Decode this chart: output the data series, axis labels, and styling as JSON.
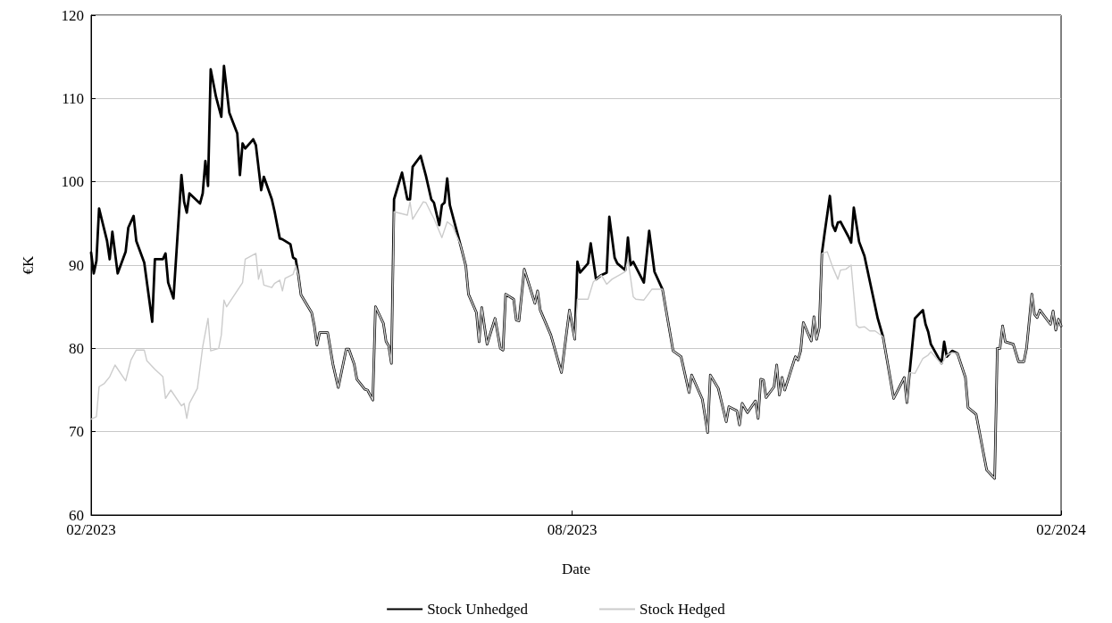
{
  "chart_data": {
    "type": "line",
    "xlabel": "Date",
    "ylabel": "€K",
    "xlim": [
      "2023-02-01",
      "2024-02-01"
    ],
    "xticks": [
      {
        "value": "2023-02-01",
        "label": "02/2023"
      },
      {
        "value": "2023-08-01",
        "label": "08/2023"
      },
      {
        "value": "2024-02-01",
        "label": "02/2024"
      }
    ],
    "ylim": [
      60,
      120
    ],
    "yticks": [
      60,
      70,
      80,
      90,
      100,
      110,
      120
    ],
    "grid": "y",
    "legend": "bottom",
    "marker": "none",
    "line_style": "solid",
    "series": [
      {
        "name": "Stock Unhedged",
        "color": "#000000",
        "x": [
          "2023-02-01",
          "2023-02-02",
          "2023-02-03",
          "2023-02-04",
          "2023-02-07",
          "2023-02-08",
          "2023-02-09",
          "2023-02-11",
          "2023-02-14",
          "2023-02-15",
          "2023-02-17",
          "2023-02-18",
          "2023-02-21",
          "2023-02-24",
          "2023-02-25",
          "2023-02-28",
          "2023-03-01",
          "2023-03-02",
          "2023-03-04",
          "2023-03-07",
          "2023-03-08",
          "2023-03-09",
          "2023-03-10",
          "2023-03-14",
          "2023-03-15",
          "2023-03-16",
          "2023-03-17",
          "2023-03-18",
          "2023-03-20",
          "2023-03-22",
          "2023-03-23",
          "2023-03-25",
          "2023-03-28",
          "2023-03-29",
          "2023-03-30",
          "2023-03-31",
          "2023-04-03",
          "2023-04-04",
          "2023-04-06",
          "2023-04-07",
          "2023-04-10",
          "2023-04-11",
          "2023-04-13",
          "2023-04-14",
          "2023-04-17",
          "2023-04-18",
          "2023-04-19",
          "2023-04-20",
          "2023-04-21",
          "2023-04-25",
          "2023-04-26",
          "2023-04-27",
          "2023-04-28",
          "2023-05-01",
          "2023-05-03",
          "2023-05-05",
          "2023-05-08",
          "2023-05-09",
          "2023-05-11",
          "2023-05-12",
          "2023-05-15",
          "2023-05-16",
          "2023-05-18",
          "2023-05-19",
          "2023-05-22",
          "2023-05-23",
          "2023-05-24",
          "2023-05-25",
          "2023-05-26",
          "2023-05-29",
          "2023-05-31",
          "2023-06-01",
          "2023-06-02",
          "2023-06-05",
          "2023-06-07",
          "2023-06-09",
          "2023-06-10",
          "2023-06-12",
          "2023-06-13",
          "2023-06-14",
          "2023-06-15",
          "2023-06-16",
          "2023-06-20",
          "2023-06-22",
          "2023-06-23",
          "2023-06-26",
          "2023-06-27",
          "2023-06-28",
          "2023-06-30",
          "2023-07-03",
          "2023-07-05",
          "2023-07-06",
          "2023-07-07",
          "2023-07-10",
          "2023-07-11",
          "2023-07-12",
          "2023-07-14",
          "2023-07-18",
          "2023-07-19",
          "2023-07-20",
          "2023-07-24",
          "2023-07-28",
          "2023-07-31",
          "2023-08-02",
          "2023-08-03",
          "2023-08-04",
          "2023-08-07",
          "2023-08-08",
          "2023-08-10",
          "2023-08-12",
          "2023-08-14",
          "2023-08-15",
          "2023-08-17",
          "2023-08-18",
          "2023-08-21",
          "2023-08-22",
          "2023-08-23",
          "2023-08-24",
          "2023-08-28",
          "2023-08-30",
          "2023-09-01",
          "2023-09-04",
          "2023-09-08",
          "2023-09-11",
          "2023-09-14",
          "2023-09-15",
          "2023-09-19",
          "2023-09-21",
          "2023-09-22",
          "2023-09-25",
          "2023-09-28",
          "2023-09-29",
          "2023-10-02",
          "2023-10-03",
          "2023-10-04",
          "2023-10-06",
          "2023-10-09",
          "2023-10-10",
          "2023-10-11",
          "2023-10-12",
          "2023-10-13",
          "2023-10-16",
          "2023-10-17",
          "2023-10-18",
          "2023-10-19",
          "2023-10-20",
          "2023-10-24",
          "2023-10-25",
          "2023-10-26",
          "2023-10-27",
          "2023-10-30",
          "2023-10-31",
          "2023-11-01",
          "2023-11-02",
          "2023-11-03",
          "2023-11-04",
          "2023-11-06",
          "2023-11-07",
          "2023-11-08",
          "2023-11-09",
          "2023-11-10",
          "2023-11-13",
          "2023-11-14",
          "2023-11-15",
          "2023-11-17",
          "2023-11-19",
          "2023-11-24",
          "2023-11-26",
          "2023-11-30",
          "2023-12-04",
          "2023-12-05",
          "2023-12-06",
          "2023-12-08",
          "2023-12-11",
          "2023-12-12",
          "2023-12-13",
          "2023-12-14",
          "2023-12-18",
          "2023-12-19",
          "2023-12-20",
          "2023-12-22",
          "2023-12-24",
          "2023-12-27",
          "2023-12-28",
          "2023-12-31",
          "2024-01-04",
          "2024-01-07",
          "2024-01-08",
          "2024-01-09",
          "2024-01-10",
          "2024-01-11",
          "2024-01-14",
          "2024-01-16",
          "2024-01-18",
          "2024-01-19",
          "2024-01-21",
          "2024-01-22",
          "2024-01-23",
          "2024-01-24",
          "2024-01-28",
          "2024-01-29",
          "2024-01-30",
          "2024-01-31",
          "2024-02-01"
        ],
        "values": [
          91.5,
          89.0,
          90.5,
          96.8,
          92.9,
          90.7,
          94.0,
          89.0,
          91.6,
          94.5,
          95.9,
          92.9,
          90.3,
          83.2,
          90.7,
          90.7,
          91.4,
          87.9,
          86.0,
          100.8,
          97.6,
          96.3,
          98.6,
          97.4,
          98.6,
          102.5,
          99.5,
          113.5,
          110.2,
          107.8,
          113.9,
          108.3,
          105.8,
          100.8,
          104.6,
          104.0,
          105.1,
          104.4,
          99.0,
          100.6,
          97.9,
          96.5,
          93.2,
          93.1,
          92.5,
          90.9,
          90.7,
          88.8,
          86.4,
          84.3,
          82.7,
          80.4,
          81.9,
          81.9,
          78.1,
          75.3,
          79.9,
          79.9,
          78.1,
          76.3,
          75.1,
          75.0,
          73.8,
          85.0,
          83.0,
          80.8,
          80.3,
          78.2,
          97.9,
          101.1,
          97.9,
          97.9,
          101.8,
          103.1,
          100.7,
          97.9,
          97.5,
          94.8,
          97.2,
          97.5,
          100.4,
          97.2,
          92.4,
          89.9,
          86.5,
          84.3,
          80.8,
          84.9,
          80.5,
          83.6,
          80.0,
          79.8,
          86.5,
          85.9,
          83.4,
          83.3,
          89.5,
          85.4,
          86.9,
          84.6,
          81.6,
          77.1,
          84.6,
          81.1,
          90.4,
          89.1,
          90.2,
          92.6,
          88.3,
          88.8,
          89.1,
          95.8,
          90.9,
          90.2,
          89.4,
          93.3,
          90.0,
          90.4,
          87.9,
          94.1,
          89.2,
          87.1,
          79.7,
          79.0,
          74.7,
          76.8,
          73.9,
          69.9,
          76.8,
          75.2,
          71.2,
          73.0,
          72.5,
          70.8,
          73.4,
          72.3,
          73.7,
          71.6,
          76.3,
          76.2,
          74.1,
          75.4,
          78.0,
          74.4,
          76.5,
          75.0,
          79.0,
          78.6,
          79.7,
          83.1,
          80.9,
          83.8,
          81.1,
          82.5,
          91.4,
          93.8,
          98.3,
          94.8,
          94.1,
          95.1,
          95.2,
          93.4,
          92.7,
          96.9,
          92.8,
          91.1,
          83.6,
          81.4,
          74.0,
          76.5,
          73.5,
          77.1,
          83.6,
          84.6,
          82.9,
          82.0,
          80.5,
          78.2,
          80.8,
          79.0,
          79.7,
          79.4,
          76.5,
          72.9,
          72.1,
          65.4,
          64.4,
          80.0,
          80.0,
          82.7,
          80.8,
          80.5,
          78.4,
          78.4,
          80.0,
          86.5,
          84.1,
          83.7,
          84.6,
          82.9,
          84.5,
          82.2,
          83.5,
          82.7
        ]
      },
      {
        "name": "Stock Hedged",
        "color": "#cccccc",
        "x": [
          "2023-02-01",
          "2023-02-03",
          "2023-02-04",
          "2023-02-06",
          "2023-02-08",
          "2023-02-10",
          "2023-02-14",
          "2023-02-16",
          "2023-02-18",
          "2023-02-21",
          "2023-02-22",
          "2023-02-25",
          "2023-02-28",
          "2023-03-01",
          "2023-03-03",
          "2023-03-07",
          "2023-03-08",
          "2023-03-09",
          "2023-03-10",
          "2023-03-13",
          "2023-03-15",
          "2023-03-17",
          "2023-03-18",
          "2023-03-21",
          "2023-03-22",
          "2023-03-23",
          "2023-03-24",
          "2023-03-30",
          "2023-03-31",
          "2023-04-04",
          "2023-04-05",
          "2023-04-06",
          "2023-04-07",
          "2023-04-10",
          "2023-04-11",
          "2023-04-13",
          "2023-04-14",
          "2023-04-15",
          "2023-04-18",
          "2023-04-19",
          "2023-04-20",
          "2023-04-21",
          "2023-04-25",
          "2023-04-26",
          "2023-04-27",
          "2023-04-28",
          "2023-05-01",
          "2023-05-03",
          "2023-05-05",
          "2023-05-08",
          "2023-05-09",
          "2023-05-11",
          "2023-05-12",
          "2023-05-15",
          "2023-05-16",
          "2023-05-18",
          "2023-05-19",
          "2023-05-22",
          "2023-05-23",
          "2023-05-24",
          "2023-05-25",
          "2023-05-26",
          "2023-05-31",
          "2023-06-01",
          "2023-06-02",
          "2023-06-06",
          "2023-06-07",
          "2023-06-09",
          "2023-06-10",
          "2023-06-13",
          "2023-06-15",
          "2023-06-17",
          "2023-06-20",
          "2023-06-22",
          "2023-06-23",
          "2023-06-26",
          "2023-06-27",
          "2023-06-28",
          "2023-06-30",
          "2023-07-03",
          "2023-07-05",
          "2023-07-06",
          "2023-07-07",
          "2023-07-10",
          "2023-07-11",
          "2023-07-12",
          "2023-07-14",
          "2023-07-18",
          "2023-07-19",
          "2023-07-20",
          "2023-07-24",
          "2023-07-28",
          "2023-07-31",
          "2023-08-02",
          "2023-08-03",
          "2023-08-07",
          "2023-08-09",
          "2023-08-12",
          "2023-08-14",
          "2023-08-16",
          "2023-08-21",
          "2023-08-22",
          "2023-08-24",
          "2023-08-25",
          "2023-08-28",
          "2023-08-31",
          "2023-09-04",
          "2023-09-08",
          "2023-09-11",
          "2023-09-14",
          "2023-09-15",
          "2023-09-19",
          "2023-09-21",
          "2023-09-22",
          "2023-09-25",
          "2023-09-28",
          "2023-09-29",
          "2023-10-02",
          "2023-10-03",
          "2023-10-04",
          "2023-10-06",
          "2023-10-09",
          "2023-10-10",
          "2023-10-11",
          "2023-10-12",
          "2023-10-13",
          "2023-10-16",
          "2023-10-17",
          "2023-10-18",
          "2023-10-19",
          "2023-10-20",
          "2023-10-24",
          "2023-10-25",
          "2023-10-26",
          "2023-10-27",
          "2023-10-30",
          "2023-10-31",
          "2023-11-01",
          "2023-11-02",
          "2023-11-03",
          "2023-11-05",
          "2023-11-07",
          "2023-11-09",
          "2023-11-10",
          "2023-11-12",
          "2023-11-14",
          "2023-11-16",
          "2023-11-17",
          "2023-11-19",
          "2023-11-21",
          "2023-11-23",
          "2023-11-26",
          "2023-11-30",
          "2023-12-04",
          "2023-12-05",
          "2023-12-06",
          "2023-12-08",
          "2023-12-11",
          "2023-12-13",
          "2023-12-14",
          "2023-12-18",
          "2023-12-20",
          "2023-12-22",
          "2023-12-24",
          "2023-12-27",
          "2023-12-28",
          "2023-12-31",
          "2024-01-04",
          "2024-01-07",
          "2024-01-08",
          "2024-01-09",
          "2024-01-10",
          "2024-01-11",
          "2024-01-14",
          "2024-01-16",
          "2024-01-18",
          "2024-01-19",
          "2024-01-21",
          "2024-01-22",
          "2024-01-23",
          "2024-01-24",
          "2024-01-28",
          "2024-01-29",
          "2024-01-30",
          "2024-01-31",
          "2024-02-01"
        ],
        "values": [
          71.5,
          71.8,
          75.4,
          75.8,
          76.6,
          78.0,
          76.1,
          78.6,
          79.8,
          79.8,
          78.5,
          77.5,
          76.6,
          74.0,
          75.0,
          73.1,
          73.4,
          71.6,
          73.4,
          75.2,
          80.2,
          83.6,
          79.7,
          80.0,
          81.6,
          85.8,
          85.0,
          87.9,
          90.7,
          91.4,
          88.3,
          89.5,
          87.6,
          87.3,
          87.8,
          88.2,
          86.9,
          88.4,
          88.9,
          89.9,
          88.8,
          86.4,
          84.3,
          82.7,
          80.4,
          81.9,
          81.9,
          78.1,
          75.3,
          79.9,
          79.9,
          78.1,
          76.3,
          75.1,
          75.0,
          73.8,
          85.0,
          83.0,
          80.8,
          80.3,
          78.2,
          96.4,
          96.0,
          97.6,
          95.5,
          97.6,
          97.5,
          96.2,
          95.6,
          93.3,
          95.2,
          94.7,
          92.4,
          89.9,
          86.5,
          84.3,
          80.8,
          84.9,
          80.5,
          83.6,
          80.0,
          79.8,
          86.5,
          85.9,
          83.4,
          83.3,
          89.5,
          85.4,
          86.9,
          84.6,
          81.6,
          77.1,
          84.6,
          81.1,
          85.9,
          85.9,
          88.0,
          88.8,
          87.7,
          88.3,
          89.2,
          90.7,
          86.2,
          85.9,
          85.8,
          87.1,
          87.1,
          79.7,
          79.0,
          74.7,
          76.8,
          73.9,
          69.9,
          76.8,
          75.2,
          71.2,
          73.0,
          72.5,
          70.8,
          73.4,
          72.3,
          73.7,
          71.6,
          76.3,
          76.2,
          74.1,
          75.4,
          78.0,
          74.4,
          76.5,
          75.0,
          79.0,
          78.6,
          79.7,
          83.1,
          80.9,
          83.8,
          81.1,
          82.5,
          91.4,
          91.6,
          89.8,
          88.3,
          89.4,
          89.5,
          90.0,
          82.8,
          82.5,
          82.6,
          82.1,
          82.1,
          81.4,
          74.0,
          76.5,
          73.5,
          77.1,
          77.0,
          78.8,
          79.2,
          79.6,
          78.1,
          79.2,
          79.5,
          79.4,
          76.5,
          72.9,
          72.1,
          65.4,
          64.4,
          80.0,
          80.0,
          82.7,
          80.8,
          80.5,
          78.4,
          78.4,
          80.0,
          86.5,
          84.1,
          83.7,
          84.6,
          82.9,
          84.5,
          82.2,
          83.5,
          82.7
        ]
      }
    ]
  }
}
